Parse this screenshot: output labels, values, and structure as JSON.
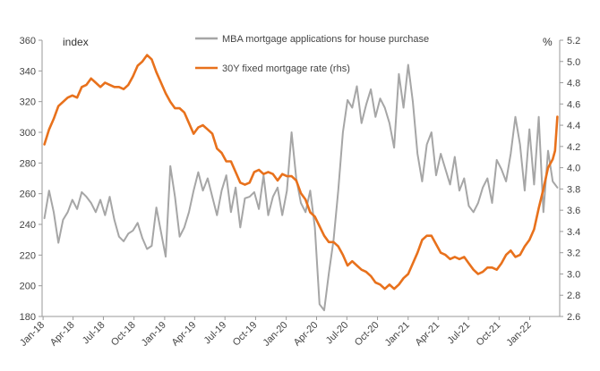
{
  "chart_data": {
    "type": "line",
    "left_axis_label": "index",
    "right_axis_label": "%",
    "left_ylim": [
      180,
      360
    ],
    "right_ylim": [
      2.6,
      5.2
    ],
    "left_ticks": [
      180,
      200,
      220,
      240,
      260,
      280,
      300,
      320,
      340,
      360
    ],
    "right_ticks": [
      "2.6",
      "2.8",
      "3.0",
      "3.2",
      "3.4",
      "3.6",
      "3.8",
      "4.0",
      "4.2",
      "4.4",
      "4.6",
      "4.8",
      "5.0",
      "5.2"
    ],
    "x_tick_labels": [
      "Jan-18",
      "Apr-18",
      "Jul-18",
      "Oct-18",
      "Jan-19",
      "Apr-19",
      "Jul-19",
      "Oct-19",
      "Jan-20",
      "Apr-20",
      "Jul-20",
      "Oct-20",
      "Jan-21",
      "Apr-21",
      "Jul-21",
      "Oct-21",
      "Jan-22"
    ],
    "series": [
      {
        "name": "MBA mortgage applications for house purchase",
        "axis": "left",
        "color": "#a6a6a6",
        "points": [
          [
            "2018-01-05",
            244
          ],
          [
            "2018-01-19",
            262
          ],
          [
            "2018-02-02",
            248
          ],
          [
            "2018-02-16",
            228
          ],
          [
            "2018-03-02",
            243
          ],
          [
            "2018-03-16",
            248
          ],
          [
            "2018-03-30",
            256
          ],
          [
            "2018-04-13",
            250
          ],
          [
            "2018-04-27",
            261
          ],
          [
            "2018-05-11",
            258
          ],
          [
            "2018-05-25",
            254
          ],
          [
            "2018-06-08",
            248
          ],
          [
            "2018-06-22",
            256
          ],
          [
            "2018-07-06",
            246
          ],
          [
            "2018-07-20",
            258
          ],
          [
            "2018-08-03",
            243
          ],
          [
            "2018-08-17",
            232
          ],
          [
            "2018-08-31",
            229
          ],
          [
            "2018-09-14",
            234
          ],
          [
            "2018-09-28",
            236
          ],
          [
            "2018-10-12",
            241
          ],
          [
            "2018-10-26",
            231
          ],
          [
            "2018-11-09",
            224
          ],
          [
            "2018-11-23",
            226
          ],
          [
            "2018-12-07",
            251
          ],
          [
            "2018-12-21",
            235
          ],
          [
            "2019-01-04",
            219
          ],
          [
            "2019-01-18",
            278
          ],
          [
            "2019-02-01",
            258
          ],
          [
            "2019-02-15",
            232
          ],
          [
            "2019-03-01",
            238
          ],
          [
            "2019-03-15",
            248
          ],
          [
            "2019-03-29",
            262
          ],
          [
            "2019-04-12",
            274
          ],
          [
            "2019-04-26",
            262
          ],
          [
            "2019-05-10",
            270
          ],
          [
            "2019-05-24",
            258
          ],
          [
            "2019-06-07",
            246
          ],
          [
            "2019-06-21",
            262
          ],
          [
            "2019-07-05",
            272
          ],
          [
            "2019-07-19",
            248
          ],
          [
            "2019-08-02",
            264
          ],
          [
            "2019-08-16",
            238
          ],
          [
            "2019-08-30",
            257
          ],
          [
            "2019-09-13",
            258
          ],
          [
            "2019-09-27",
            261
          ],
          [
            "2019-10-11",
            250
          ],
          [
            "2019-10-25",
            272
          ],
          [
            "2019-11-08",
            246
          ],
          [
            "2019-11-22",
            258
          ],
          [
            "2019-12-06",
            264
          ],
          [
            "2019-12-20",
            246
          ],
          [
            "2020-01-03",
            262
          ],
          [
            "2020-01-17",
            300
          ],
          [
            "2020-01-31",
            270
          ],
          [
            "2020-02-14",
            254
          ],
          [
            "2020-02-28",
            248
          ],
          [
            "2020-03-13",
            262
          ],
          [
            "2020-03-27",
            238
          ],
          [
            "2020-04-10",
            188
          ],
          [
            "2020-04-24",
            184
          ],
          [
            "2020-05-08",
            208
          ],
          [
            "2020-05-22",
            230
          ],
          [
            "2020-06-05",
            262
          ],
          [
            "2020-06-19",
            300
          ],
          [
            "2020-07-03",
            321
          ],
          [
            "2020-07-17",
            316
          ],
          [
            "2020-07-31",
            330
          ],
          [
            "2020-08-14",
            306
          ],
          [
            "2020-08-28",
            318
          ],
          [
            "2020-09-11",
            328
          ],
          [
            "2020-09-25",
            310
          ],
          [
            "2020-10-09",
            322
          ],
          [
            "2020-10-23",
            316
          ],
          [
            "2020-11-06",
            306
          ],
          [
            "2020-11-20",
            290
          ],
          [
            "2020-12-04",
            338
          ],
          [
            "2020-12-18",
            316
          ],
          [
            "2021-01-01",
            344
          ],
          [
            "2021-01-15",
            320
          ],
          [
            "2021-01-29",
            286
          ],
          [
            "2021-02-12",
            268
          ],
          [
            "2021-02-26",
            292
          ],
          [
            "2021-03-12",
            300
          ],
          [
            "2021-03-26",
            272
          ],
          [
            "2021-04-09",
            286
          ],
          [
            "2021-04-23",
            276
          ],
          [
            "2021-05-07",
            266
          ],
          [
            "2021-05-21",
            284
          ],
          [
            "2021-06-04",
            262
          ],
          [
            "2021-06-18",
            270
          ],
          [
            "2021-07-02",
            252
          ],
          [
            "2021-07-16",
            248
          ],
          [
            "2021-07-30",
            254
          ],
          [
            "2021-08-13",
            264
          ],
          [
            "2021-08-27",
            270
          ],
          [
            "2021-09-10",
            254
          ],
          [
            "2021-09-24",
            282
          ],
          [
            "2021-10-08",
            276
          ],
          [
            "2021-10-22",
            268
          ],
          [
            "2021-11-05",
            286
          ],
          [
            "2021-11-19",
            310
          ],
          [
            "2021-12-03",
            292
          ],
          [
            "2021-12-17",
            262
          ],
          [
            "2021-12-31",
            302
          ],
          [
            "2022-01-14",
            266
          ],
          [
            "2022-01-28",
            310
          ],
          [
            "2022-02-11",
            248
          ],
          [
            "2022-02-25",
            288
          ],
          [
            "2022-03-11",
            268
          ],
          [
            "2022-03-25",
            264
          ]
        ]
      },
      {
        "name": "30Y fixed mortgage rate (rhs)",
        "axis": "right",
        "color": "#e8711c",
        "points": [
          [
            "2018-01-05",
            4.22
          ],
          [
            "2018-01-19",
            4.36
          ],
          [
            "2018-02-02",
            4.46
          ],
          [
            "2018-02-16",
            4.58
          ],
          [
            "2018-03-02",
            4.62
          ],
          [
            "2018-03-16",
            4.66
          ],
          [
            "2018-03-30",
            4.68
          ],
          [
            "2018-04-13",
            4.66
          ],
          [
            "2018-04-27",
            4.76
          ],
          [
            "2018-05-11",
            4.78
          ],
          [
            "2018-05-25",
            4.84
          ],
          [
            "2018-06-08",
            4.8
          ],
          [
            "2018-06-22",
            4.76
          ],
          [
            "2018-07-06",
            4.8
          ],
          [
            "2018-07-20",
            4.78
          ],
          [
            "2018-08-03",
            4.76
          ],
          [
            "2018-08-17",
            4.76
          ],
          [
            "2018-08-31",
            4.74
          ],
          [
            "2018-09-14",
            4.78
          ],
          [
            "2018-09-28",
            4.86
          ],
          [
            "2018-10-12",
            4.96
          ],
          [
            "2018-10-26",
            5.0
          ],
          [
            "2018-11-09",
            5.06
          ],
          [
            "2018-11-23",
            5.02
          ],
          [
            "2018-12-07",
            4.9
          ],
          [
            "2018-12-21",
            4.8
          ],
          [
            "2019-01-04",
            4.7
          ],
          [
            "2019-01-18",
            4.62
          ],
          [
            "2019-02-01",
            4.56
          ],
          [
            "2019-02-15",
            4.56
          ],
          [
            "2019-03-01",
            4.52
          ],
          [
            "2019-03-15",
            4.42
          ],
          [
            "2019-03-29",
            4.32
          ],
          [
            "2019-04-12",
            4.38
          ],
          [
            "2019-04-26",
            4.4
          ],
          [
            "2019-05-10",
            4.36
          ],
          [
            "2019-05-24",
            4.32
          ],
          [
            "2019-06-07",
            4.18
          ],
          [
            "2019-06-21",
            4.14
          ],
          [
            "2019-07-05",
            4.06
          ],
          [
            "2019-07-19",
            4.06
          ],
          [
            "2019-08-02",
            3.96
          ],
          [
            "2019-08-16",
            3.86
          ],
          [
            "2019-08-30",
            3.84
          ],
          [
            "2019-09-13",
            3.86
          ],
          [
            "2019-09-27",
            3.96
          ],
          [
            "2019-10-11",
            3.98
          ],
          [
            "2019-10-25",
            3.94
          ],
          [
            "2019-11-08",
            3.96
          ],
          [
            "2019-11-22",
            3.94
          ],
          [
            "2019-12-06",
            3.88
          ],
          [
            "2019-12-20",
            3.94
          ],
          [
            "2020-01-03",
            3.92
          ],
          [
            "2020-01-17",
            3.92
          ],
          [
            "2020-01-31",
            3.88
          ],
          [
            "2020-02-14",
            3.76
          ],
          [
            "2020-02-28",
            3.7
          ],
          [
            "2020-03-13",
            3.58
          ],
          [
            "2020-03-27",
            3.54
          ],
          [
            "2020-04-10",
            3.45
          ],
          [
            "2020-04-24",
            3.36
          ],
          [
            "2020-05-08",
            3.3
          ],
          [
            "2020-05-22",
            3.3
          ],
          [
            "2020-06-05",
            3.26
          ],
          [
            "2020-06-19",
            3.18
          ],
          [
            "2020-07-03",
            3.08
          ],
          [
            "2020-07-17",
            3.12
          ],
          [
            "2020-07-31",
            3.08
          ],
          [
            "2020-08-14",
            3.04
          ],
          [
            "2020-08-28",
            3.02
          ],
          [
            "2020-09-11",
            2.98
          ],
          [
            "2020-09-25",
            2.92
          ],
          [
            "2020-10-09",
            2.9
          ],
          [
            "2020-10-23",
            2.86
          ],
          [
            "2020-11-06",
            2.9
          ],
          [
            "2020-11-20",
            2.86
          ],
          [
            "2020-12-04",
            2.9
          ],
          [
            "2020-12-18",
            2.96
          ],
          [
            "2021-01-01",
            3.0
          ],
          [
            "2021-01-15",
            3.1
          ],
          [
            "2021-01-29",
            3.2
          ],
          [
            "2021-02-12",
            3.32
          ],
          [
            "2021-02-26",
            3.36
          ],
          [
            "2021-03-12",
            3.36
          ],
          [
            "2021-03-26",
            3.28
          ],
          [
            "2021-04-09",
            3.2
          ],
          [
            "2021-04-23",
            3.18
          ],
          [
            "2021-05-07",
            3.14
          ],
          [
            "2021-05-21",
            3.16
          ],
          [
            "2021-06-04",
            3.14
          ],
          [
            "2021-06-18",
            3.16
          ],
          [
            "2021-07-02",
            3.1
          ],
          [
            "2021-07-16",
            3.04
          ],
          [
            "2021-07-30",
            3.0
          ],
          [
            "2021-08-13",
            3.02
          ],
          [
            "2021-08-27",
            3.06
          ],
          [
            "2021-09-10",
            3.06
          ],
          [
            "2021-09-24",
            3.04
          ],
          [
            "2021-10-08",
            3.1
          ],
          [
            "2021-10-22",
            3.18
          ],
          [
            "2021-11-05",
            3.22
          ],
          [
            "2021-11-19",
            3.16
          ],
          [
            "2021-12-03",
            3.18
          ],
          [
            "2021-12-17",
            3.26
          ],
          [
            "2021-12-31",
            3.32
          ],
          [
            "2022-01-14",
            3.42
          ],
          [
            "2022-01-28",
            3.62
          ],
          [
            "2022-02-11",
            3.8
          ],
          [
            "2022-02-25",
            4.0
          ],
          [
            "2022-03-11",
            4.08
          ],
          [
            "2022-03-18",
            4.16
          ],
          [
            "2022-03-25",
            4.48
          ]
        ]
      }
    ],
    "grid": false,
    "legend_placement": "top-center"
  },
  "styles": {
    "axis_color": "#9a9a9a",
    "text_color": "#444444"
  }
}
